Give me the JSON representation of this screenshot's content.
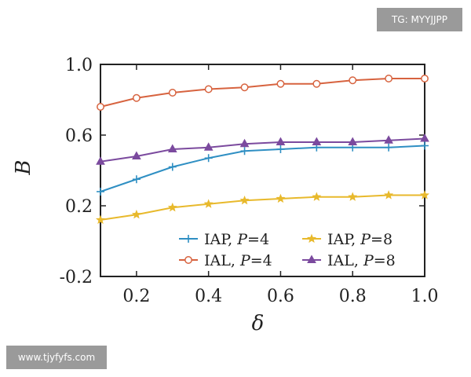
{
  "watermarks": {
    "top_right": "TG: MYYJJPP",
    "bottom_left": "www.tjyfyfs.com"
  },
  "chart_data": {
    "type": "line",
    "title": "",
    "xlabel": "δ",
    "ylabel": "B",
    "xlim": [
      0.1,
      1.0
    ],
    "ylim": [
      -0.2,
      1.0
    ],
    "xticks": [
      0.2,
      0.4,
      0.6,
      0.8,
      1.0
    ],
    "xtick_labels": [
      "0.2",
      "0.4",
      "0.6",
      "0.8",
      "1.0"
    ],
    "yticks": [
      -0.2,
      0.2,
      0.6,
      1.0
    ],
    "ytick_labels": [
      "-0.2",
      "0.2",
      "0.6",
      "1.0"
    ],
    "grid": false,
    "legend_position": "bottom-right",
    "x": [
      0.1,
      0.2,
      0.3,
      0.4,
      0.5,
      0.6,
      0.7,
      0.8,
      0.9,
      1.0
    ],
    "series": [
      {
        "name": "IAP, P=4",
        "name_parts": [
          "IAP, ",
          "P",
          "=4"
        ],
        "color": "#2f8fc3",
        "marker": "plus",
        "values": [
          0.28,
          0.35,
          0.42,
          0.47,
          0.51,
          0.52,
          0.53,
          0.53,
          0.53,
          0.54
        ]
      },
      {
        "name": "IAL, P=4",
        "name_parts": [
          "IAL, ",
          "P",
          "=4"
        ],
        "color": "#d7633f",
        "marker": "circle",
        "values": [
          0.76,
          0.81,
          0.84,
          0.86,
          0.87,
          0.89,
          0.89,
          0.91,
          0.92,
          0.92
        ]
      },
      {
        "name": "IAP, P=8",
        "name_parts": [
          "IAP, ",
          "P",
          "=8"
        ],
        "color": "#e8b92c",
        "marker": "star",
        "values": [
          0.12,
          0.15,
          0.19,
          0.21,
          0.23,
          0.24,
          0.25,
          0.25,
          0.26,
          0.26
        ]
      },
      {
        "name": "IAL, P=8",
        "name_parts": [
          "IAL, ",
          "P",
          "=8"
        ],
        "color": "#7b4a9e",
        "marker": "triangle",
        "values": [
          0.45,
          0.48,
          0.52,
          0.53,
          0.55,
          0.56,
          0.56,
          0.56,
          0.57,
          0.58
        ]
      }
    ]
  }
}
